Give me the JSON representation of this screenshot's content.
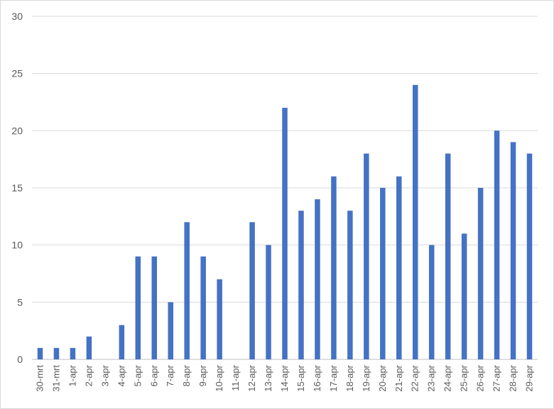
{
  "chart_data": {
    "type": "bar",
    "categories": [
      "30-mrt",
      "31-mrt",
      "1-apr",
      "2-apr",
      "3-apr",
      "4-apr",
      "5-apr",
      "6-apr",
      "7-apr",
      "8-apr",
      "9-apr",
      "10-apr",
      "11-apr",
      "12-apr",
      "13-apr",
      "14-apr",
      "15-apr",
      "16-apr",
      "17-apr",
      "18-apr",
      "19-apr",
      "20-apr",
      "21-apr",
      "22-apr",
      "23-apr",
      "24-apr",
      "25-apr",
      "26-apr",
      "27-apr",
      "28-apr",
      "29-apr"
    ],
    "values": [
      1,
      1,
      1,
      2,
      0,
      3,
      9,
      9,
      5,
      12,
      9,
      7,
      0,
      12,
      10,
      22,
      13,
      14,
      16,
      13,
      18,
      15,
      16,
      24,
      10,
      18,
      11,
      15,
      20,
      19,
      18
    ],
    "ylim": [
      0,
      30
    ],
    "yticks": [
      "0",
      "5",
      "10",
      "15",
      "20",
      "25",
      "30"
    ],
    "grid": true,
    "bar_color": "#4472c4"
  }
}
